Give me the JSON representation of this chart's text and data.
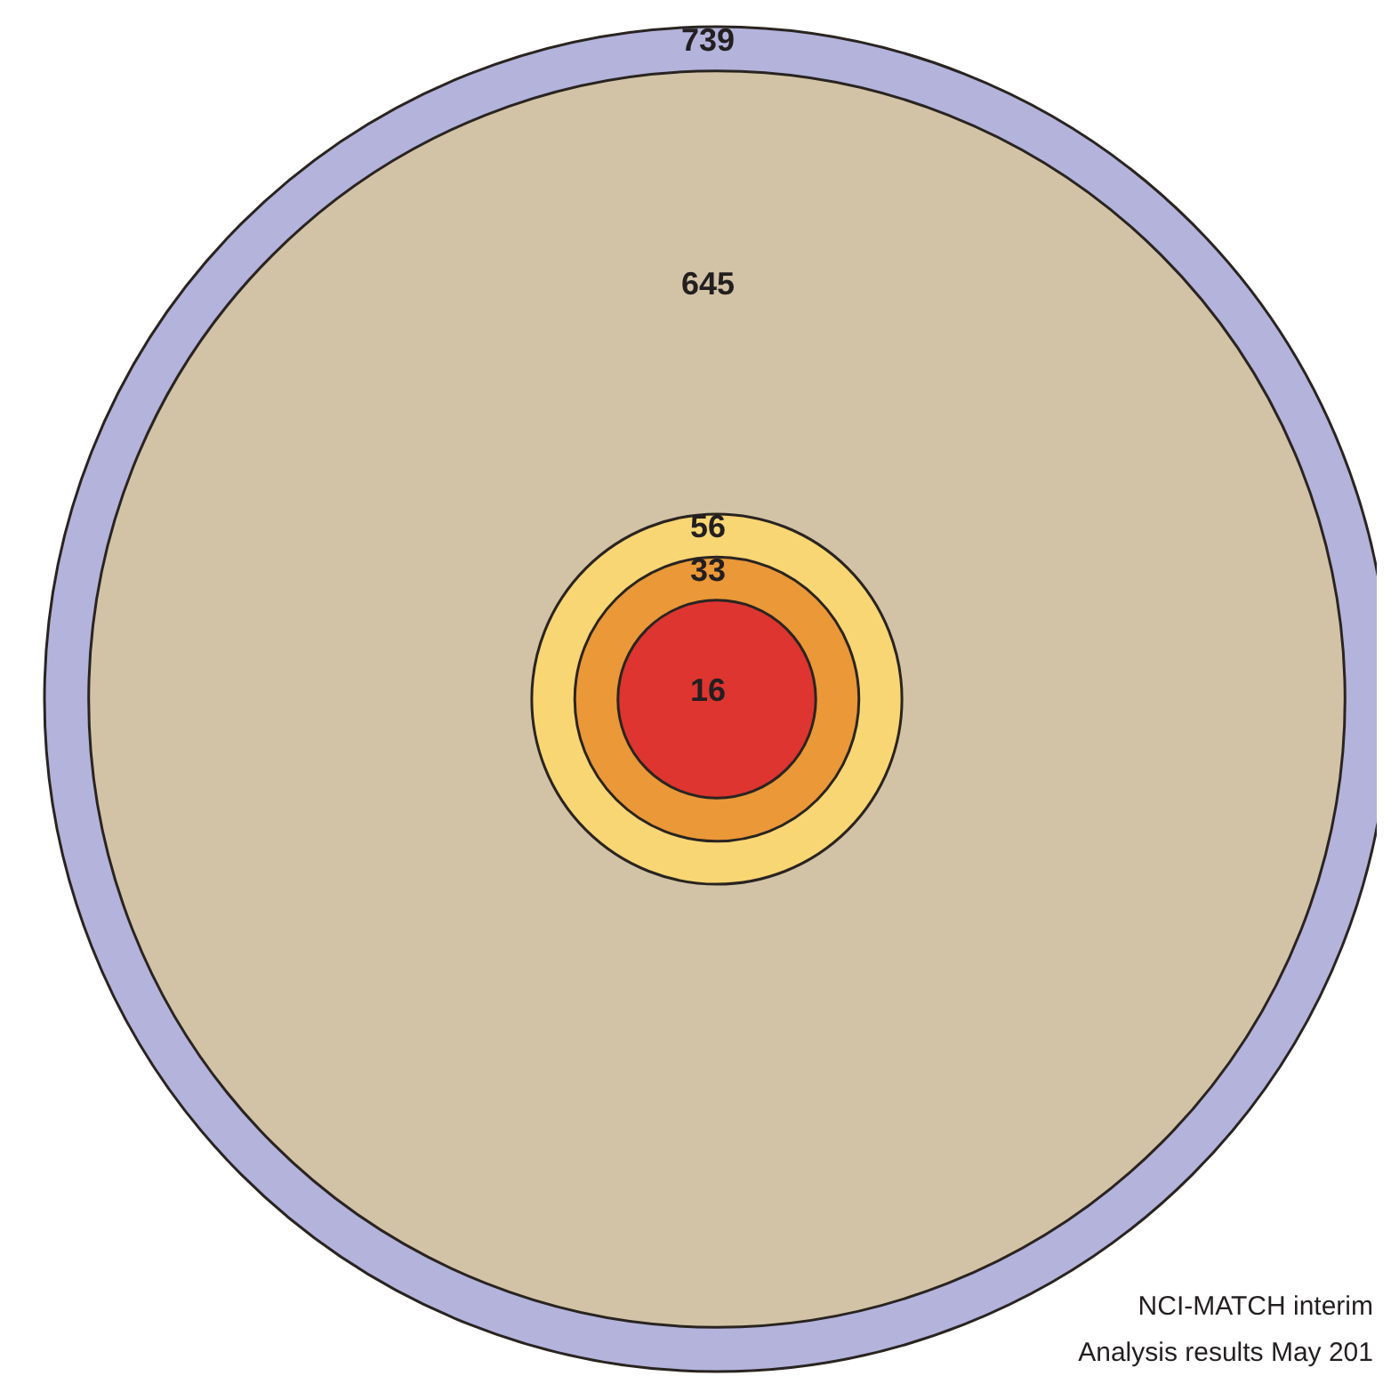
{
  "chart_data": {
    "type": "other",
    "categories": [
      null,
      null,
      null,
      null,
      null
    ],
    "values": [
      739,
      645,
      56,
      33,
      16
    ],
    "colors": [
      "#b3b3dc",
      "#d3c3a6",
      "#f8d674",
      "#ea9838",
      "#de3530"
    ],
    "data_labels": true,
    "annotations": [
      "NCI-MATCH interim",
      "Analysis results May 201"
    ]
  }
}
